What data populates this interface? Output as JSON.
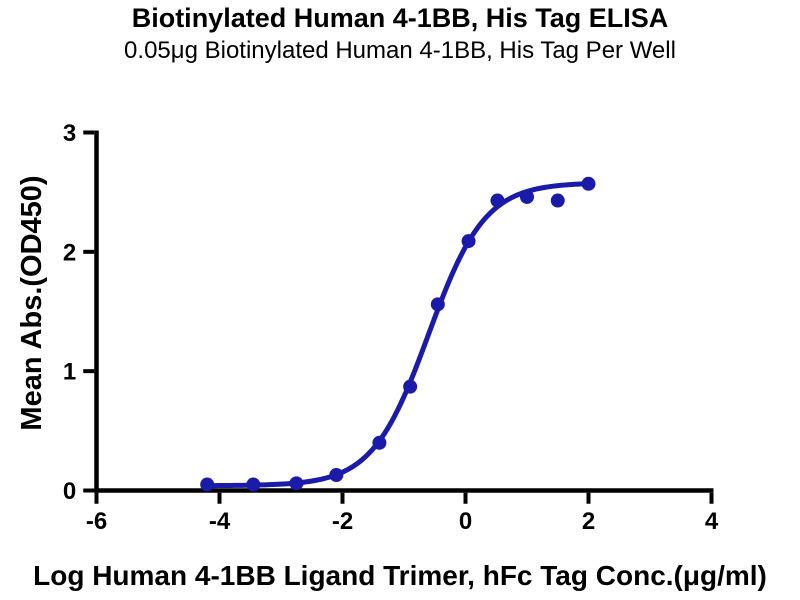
{
  "title": "Biotinylated Human 4-1BB, His Tag ELISA",
  "subtitle": "0.05μg Biotinylated Human 4-1BB, His Tag Per Well",
  "colors": {
    "curve": "#1b1ba9",
    "axis": "#000000",
    "text": "#000000",
    "background": "#ffffff"
  },
  "chart_data": {
    "type": "scatter",
    "title": "Biotinylated Human 4-1BB, His Tag ELISA",
    "subtitle": "0.05μg Biotinylated Human 4-1BB, His Tag Per Well",
    "xlabel": "Log Human 4-1BB Ligand Trimer, hFc Tag Conc.(μg/ml)",
    "ylabel": "Mean Abs.(OD450)",
    "xlim": [
      -6,
      4
    ],
    "ylim": [
      0,
      3
    ],
    "x_ticks": [
      -6,
      -4,
      -2,
      0,
      2,
      4
    ],
    "y_ticks": [
      0,
      1,
      2,
      3
    ],
    "grid": false,
    "legend": "none",
    "series": [
      {
        "name": "Mean Abs.(OD450)",
        "marker": "circle",
        "points": [
          [
            -4.2,
            0.05
          ],
          [
            -3.45,
            0.05
          ],
          [
            -2.75,
            0.06
          ],
          [
            -2.1,
            0.13
          ],
          [
            -1.4,
            0.4
          ],
          [
            -0.9,
            0.87
          ],
          [
            -0.45,
            1.56
          ],
          [
            0.05,
            2.09
          ],
          [
            0.52,
            2.43
          ],
          [
            1.0,
            2.46
          ],
          [
            1.5,
            2.43
          ],
          [
            2.0,
            2.57
          ]
        ]
      }
    ],
    "fit_curve": {
      "model": "4PL",
      "bottom": 0.04,
      "top": 2.58,
      "log_ec50": -0.6,
      "hill_slope": 0.95,
      "x_start": -4.2,
      "x_end": 2.0
    }
  }
}
